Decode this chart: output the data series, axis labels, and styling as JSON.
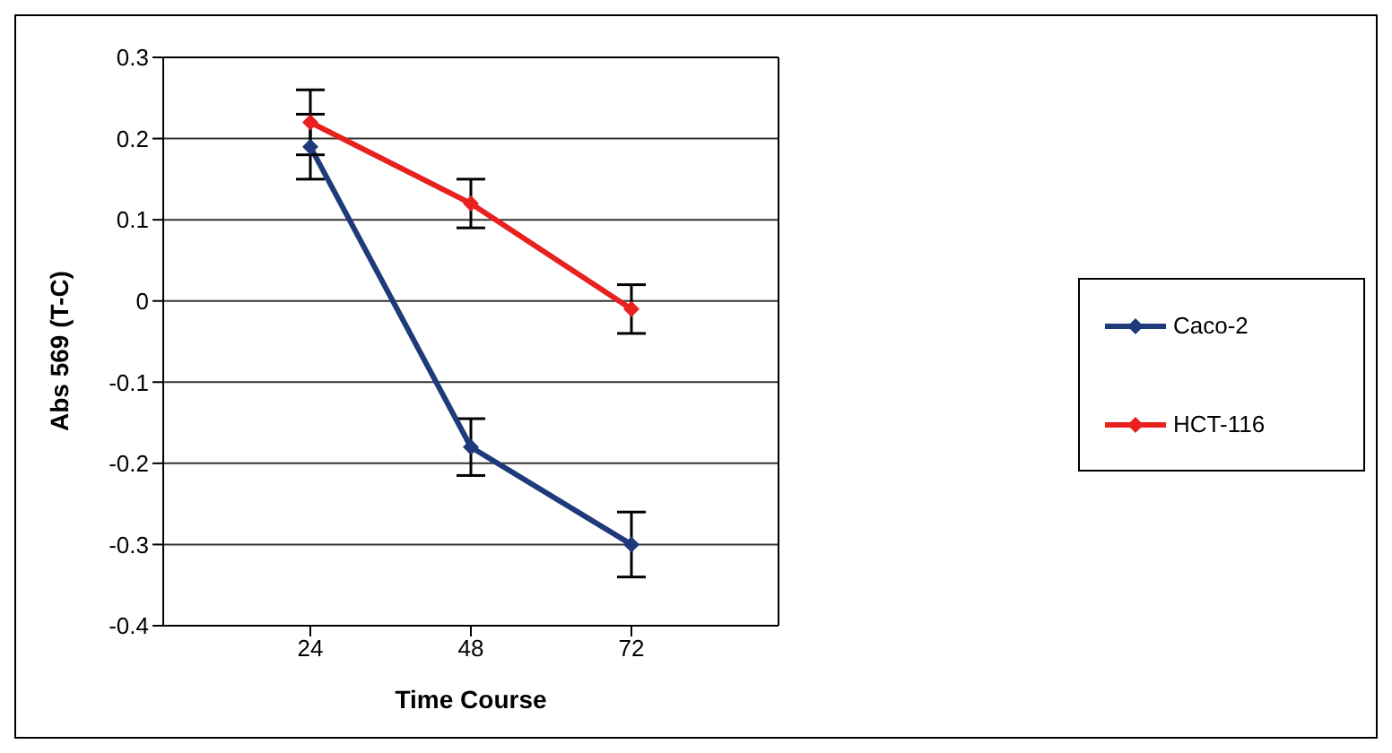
{
  "chart_data": {
    "type": "line",
    "xlabel": "Time Course",
    "ylabel": "Abs 569 (T-C)",
    "categories": [
      "24",
      "48",
      "72"
    ],
    "series": [
      {
        "name": "Caco-2",
        "color": "#1f3a7a",
        "values": [
          0.19,
          -0.18,
          -0.3
        ],
        "errors": [
          0.04,
          0.035,
          0.04
        ]
      },
      {
        "name": "HCT-116",
        "color": "#e8201e",
        "values": [
          0.22,
          0.12,
          -0.01
        ],
        "errors": [
          0.04,
          0.03,
          0.03
        ]
      }
    ],
    "ylim": [
      -0.4,
      0.3
    ],
    "yticks": [
      -0.4,
      -0.3,
      -0.2,
      -0.1,
      0,
      0.1,
      0.2,
      0.3
    ],
    "grid": "y",
    "legend": "right",
    "marker": "diamond",
    "line_style": "solid"
  }
}
